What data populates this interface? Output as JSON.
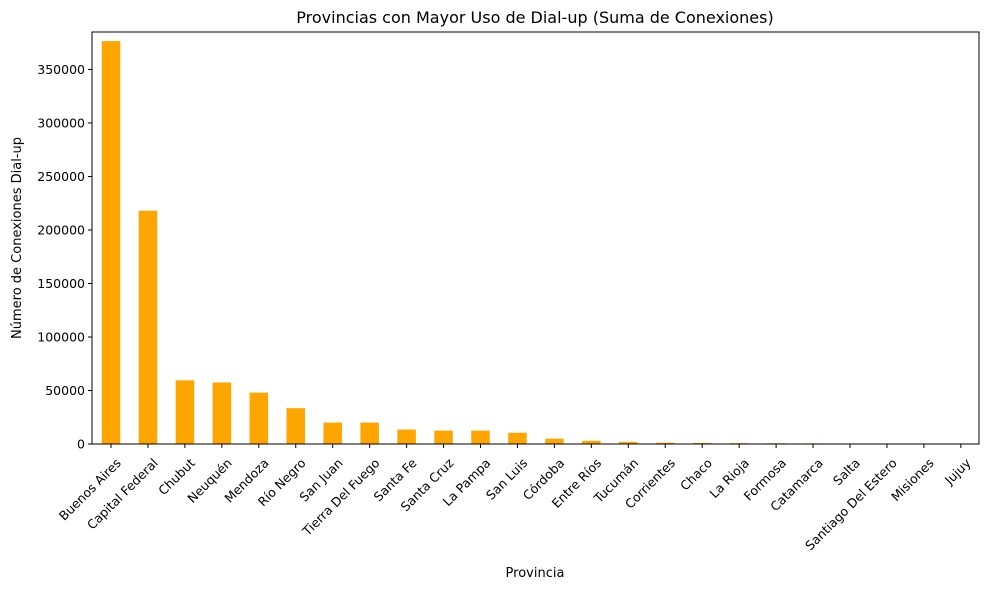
{
  "chart_data": {
    "type": "bar",
    "title": "Provincias con Mayor Uso de Dial-up (Suma de Conexiones)",
    "xlabel": "Provincia",
    "ylabel": "Número de Conexiones Dial-up",
    "categories": [
      "Buenos Aires",
      "Capital Federal",
      "Chubut",
      "Neuquén",
      "Mendoza",
      "Río Negro",
      "San Juan",
      "Tierra Del Fuego",
      "Santa Fe",
      "Santa Cruz",
      "La Pampa",
      "San Luis",
      "Córdoba",
      "Entre Ríos",
      "Tucumán",
      "Corrientes",
      "Chaco",
      "La Rioja",
      "Formosa",
      "Catamarca",
      "Salta",
      "Santiago Del Estero",
      "Misiones",
      "Jujuy"
    ],
    "values": [
      376500,
      218000,
      59500,
      57500,
      48000,
      33500,
      20000,
      20000,
      13500,
      12500,
      12500,
      10500,
      5000,
      3000,
      2000,
      1200,
      1000,
      800,
      700,
      600,
      300,
      200,
      150,
      100
    ],
    "ylim": [
      0,
      385000
    ],
    "yticks": [
      0,
      50000,
      100000,
      150000,
      200000,
      250000,
      300000,
      350000
    ],
    "bar_color": "#FFA500",
    "grid": false,
    "legend": "none"
  }
}
